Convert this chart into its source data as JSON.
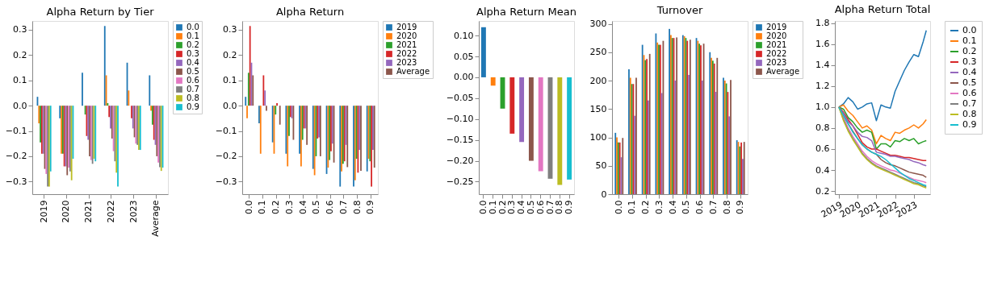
{
  "chart_data": [
    {
      "type": "bar",
      "title": "Alpha Return by Tier",
      "categories": [
        "2019",
        "2020",
        "2021",
        "2022",
        "2023",
        "Average"
      ],
      "legend": "right",
      "ylim": [
        -0.35,
        0.335
      ],
      "yticks": [
        {
          "value": -0.3,
          "label": "−0.3"
        },
        {
          "value": -0.2,
          "label": "−0.2"
        },
        {
          "value": -0.1,
          "label": "−0.1"
        },
        {
          "value": 0,
          "label": "0.0"
        },
        0.1,
        0.2,
        0.3
      ],
      "series": [
        {
          "name": "0.0",
          "color": "#1f77b4",
          "values": [
            0.035,
            -0.05,
            0.13,
            0.315,
            0.17,
            0.12
          ]
        },
        {
          "name": "0.1",
          "color": "#ff7f0e",
          "values": [
            -0.07,
            -0.19,
            0.0,
            0.12,
            0.06,
            -0.02
          ]
        },
        {
          "name": "0.2",
          "color": "#2ca02c",
          "values": [
            -0.145,
            -0.19,
            -0.035,
            0.01,
            0.0,
            -0.075
          ]
        },
        {
          "name": "0.3",
          "color": "#d62728",
          "values": [
            -0.19,
            -0.24,
            -0.12,
            -0.045,
            -0.05,
            -0.135
          ]
        },
        {
          "name": "0.4",
          "color": "#9467bd",
          "values": [
            -0.19,
            -0.24,
            -0.135,
            -0.09,
            -0.09,
            -0.155
          ]
        },
        {
          "name": "0.5",
          "color": "#8c564b",
          "values": [
            -0.25,
            -0.275,
            -0.2,
            -0.13,
            -0.125,
            -0.2
          ]
        },
        {
          "name": "0.6",
          "color": "#e377c2",
          "values": [
            -0.27,
            -0.245,
            -0.215,
            -0.18,
            -0.15,
            -0.225
          ]
        },
        {
          "name": "0.7",
          "color": "#7f7f7f",
          "values": [
            -0.32,
            -0.26,
            -0.23,
            -0.22,
            -0.155,
            -0.243
          ]
        },
        {
          "name": "0.8",
          "color": "#bcbd22",
          "values": [
            -0.32,
            -0.295,
            -0.21,
            -0.265,
            -0.175,
            -0.258
          ]
        },
        {
          "name": "0.9",
          "color": "#17becf",
          "values": [
            -0.26,
            -0.21,
            -0.22,
            -0.32,
            -0.175,
            -0.245
          ]
        }
      ]
    },
    {
      "type": "bar",
      "title": "Alpha Return",
      "categories": [
        "0.0",
        "0.1",
        "0.2",
        "0.3",
        "0.4",
        "0.5",
        "0.6",
        "0.7",
        "0.8",
        "0.9"
      ],
      "legend": "right",
      "ylim": [
        -0.35,
        0.335
      ],
      "yticks": [
        {
          "value": -0.3,
          "label": "−0.3"
        },
        {
          "value": -0.2,
          "label": "−0.2"
        },
        {
          "value": -0.1,
          "label": "−0.1"
        },
        {
          "value": 0,
          "label": "0.0"
        },
        0.1,
        0.2,
        0.3
      ],
      "series": [
        {
          "name": "2019",
          "color": "#1f77b4",
          "values": [
            0.035,
            -0.07,
            -0.145,
            -0.19,
            -0.19,
            -0.25,
            -0.27,
            -0.32,
            -0.32,
            -0.26
          ]
        },
        {
          "name": "2020",
          "color": "#ff7f0e",
          "values": [
            -0.05,
            -0.19,
            -0.19,
            -0.24,
            -0.24,
            -0.275,
            -0.245,
            -0.26,
            -0.295,
            -0.21
          ]
        },
        {
          "name": "2021",
          "color": "#2ca02c",
          "values": [
            0.13,
            0.0,
            -0.035,
            -0.12,
            -0.135,
            -0.2,
            -0.215,
            -0.23,
            -0.21,
            -0.22
          ]
        },
        {
          "name": "2022",
          "color": "#d62728",
          "values": [
            0.315,
            0.12,
            0.01,
            -0.045,
            -0.09,
            -0.13,
            -0.18,
            -0.22,
            -0.265,
            -0.32
          ]
        },
        {
          "name": "2023",
          "color": "#9467bd",
          "values": [
            0.17,
            0.06,
            0.0,
            -0.05,
            -0.09,
            -0.125,
            -0.15,
            -0.155,
            -0.175,
            -0.175
          ]
        },
        {
          "name": "Average",
          "color": "#8c564b",
          "values": [
            0.12,
            -0.02,
            -0.075,
            -0.135,
            -0.155,
            -0.2,
            -0.225,
            -0.243,
            -0.258,
            -0.245
          ]
        }
      ]
    },
    {
      "type": "bar",
      "title": "Alpha Return Mean",
      "categories": [
        "0.0",
        "0.1",
        "0.2",
        "0.3",
        "0.4",
        "0.5",
        "0.6",
        "0.7",
        "0.8",
        "0.9"
      ],
      "ylim": [
        -0.28,
        0.135
      ],
      "yticks": [
        {
          "value": -0.25,
          "label": "−0.25"
        },
        {
          "value": -0.2,
          "label": "−0.20"
        },
        {
          "value": -0.15,
          "label": "−0.15"
        },
        {
          "value": -0.1,
          "label": "−0.10"
        },
        {
          "value": -0.05,
          "label": "−0.05"
        },
        {
          "value": 0,
          "label": "0.00"
        },
        0.05,
        {
          "value": 0.1,
          "label": "0.10"
        }
      ],
      "values": [
        0.12,
        -0.02,
        -0.075,
        -0.135,
        -0.155,
        -0.2,
        -0.225,
        -0.243,
        -0.258,
        -0.245
      ],
      "colors": [
        "#1f77b4",
        "#ff7f0e",
        "#2ca02c",
        "#d62728",
        "#9467bd",
        "#8c564b",
        "#e377c2",
        "#7f7f7f",
        "#bcbd22",
        "#17becf"
      ]
    },
    {
      "type": "bar",
      "title": "Turnover",
      "categories": [
        "0.0",
        "0.1",
        "0.2",
        "0.3",
        "0.4",
        "0.5",
        "0.6",
        "0.7",
        "0.8",
        "0.9"
      ],
      "legend": "right",
      "ylim": [
        0,
        305
      ],
      "yticks": [
        0,
        50,
        100,
        150,
        200,
        250,
        300
      ],
      "series": [
        {
          "name": "2019",
          "color": "#1f77b4",
          "values": [
            108,
            220,
            263,
            283,
            291,
            280,
            275,
            250,
            205,
            95
          ]
        },
        {
          "name": "2020",
          "color": "#ff7f0e",
          "values": [
            100,
            205,
            245,
            267,
            280,
            278,
            270,
            240,
            200,
            92
          ]
        },
        {
          "name": "2021",
          "color": "#2ca02c",
          "values": [
            91,
            194,
            236,
            263,
            275,
            275,
            265,
            235,
            195,
            84
          ]
        },
        {
          "name": "2022",
          "color": "#d62728",
          "values": [
            91,
            194,
            238,
            263,
            275,
            270,
            262,
            230,
            180,
            91
          ]
        },
        {
          "name": "2023",
          "color": "#9467bd",
          "values": [
            65,
            138,
            165,
            178,
            200,
            210,
            200,
            180,
            137,
            62
          ]
        },
        {
          "name": "Average",
          "color": "#8c564b",
          "values": [
            99,
            205,
            247,
            270,
            276,
            272,
            265,
            240,
            201,
            92
          ]
        }
      ]
    },
    {
      "type": "line",
      "title": "Alpha Return Total",
      "legend": "right",
      "x": [
        "2019-01-01",
        "2019-04-01",
        "2019-07-01",
        "2019-10-01",
        "2020-01-01",
        "2020-04-01",
        "2020-07-01",
        "2020-10-01",
        "2021-01-01",
        "2021-04-01",
        "2021-07-01",
        "2021-10-01",
        "2022-01-01",
        "2022-04-01",
        "2022-07-01",
        "2022-10-01",
        "2023-01-01",
        "2023-04-01",
        "2023-07-01",
        "2023-09-01"
      ],
      "xlim": [
        "2018-10-15",
        "2023-11-15"
      ],
      "xticks": [
        "2019",
        "2020",
        "2021",
        "2022",
        "2023"
      ],
      "ylim": [
        0.17,
        1.82
      ],
      "yticks": [
        0.2,
        0.4,
        0.6,
        0.8,
        {
          "value": 1.0,
          "label": "1.0"
        },
        1.2,
        1.4,
        1.6,
        1.8
      ],
      "series": [
        {
          "name": "0.0",
          "color": "#1f77b4",
          "values": [
            1.0,
            1.03,
            1.09,
            1.05,
            0.98,
            1.0,
            1.03,
            1.04,
            0.87,
            1.02,
            1.0,
            0.99,
            1.15,
            1.25,
            1.35,
            1.43,
            1.5,
            1.48,
            1.62,
            1.73
          ]
        },
        {
          "name": "0.1",
          "color": "#ff7f0e",
          "values": [
            1.0,
            1.02,
            0.96,
            0.92,
            0.86,
            0.8,
            0.82,
            0.78,
            0.65,
            0.73,
            0.7,
            0.68,
            0.76,
            0.75,
            0.78,
            0.8,
            0.83,
            0.8,
            0.84,
            0.88
          ]
        },
        {
          "name": "0.2",
          "color": "#2ca02c",
          "values": [
            1.0,
            0.98,
            0.9,
            0.86,
            0.8,
            0.76,
            0.78,
            0.76,
            0.6,
            0.65,
            0.65,
            0.62,
            0.68,
            0.67,
            0.7,
            0.68,
            0.7,
            0.65,
            0.67,
            0.68
          ]
        },
        {
          "name": "0.3",
          "color": "#d62728",
          "values": [
            1.0,
            0.95,
            0.88,
            0.82,
            0.74,
            0.66,
            0.62,
            0.6,
            0.6,
            0.58,
            0.56,
            0.54,
            0.54,
            0.53,
            0.52,
            0.52,
            0.51,
            0.5,
            0.49,
            0.49
          ]
        },
        {
          "name": "0.4",
          "color": "#9467bd",
          "values": [
            1.0,
            0.94,
            0.86,
            0.82,
            0.76,
            0.72,
            0.71,
            0.68,
            0.57,
            0.56,
            0.55,
            0.53,
            0.53,
            0.52,
            0.51,
            0.5,
            0.48,
            0.47,
            0.45,
            0.44
          ]
        },
        {
          "name": "0.5",
          "color": "#8c564b",
          "values": [
            1.0,
            0.92,
            0.84,
            0.77,
            0.7,
            0.64,
            0.6,
            0.57,
            0.55,
            0.5,
            0.47,
            0.45,
            0.44,
            0.42,
            0.4,
            0.38,
            0.37,
            0.36,
            0.35,
            0.33
          ]
        },
        {
          "name": "0.6",
          "color": "#e377c2",
          "values": [
            1.0,
            0.9,
            0.8,
            0.72,
            0.65,
            0.58,
            0.53,
            0.49,
            0.46,
            0.44,
            0.42,
            0.4,
            0.39,
            0.37,
            0.35,
            0.33,
            0.31,
            0.3,
            0.29,
            0.28
          ]
        },
        {
          "name": "0.7",
          "color": "#7f7f7f",
          "values": [
            1.0,
            0.88,
            0.78,
            0.7,
            0.63,
            0.56,
            0.51,
            0.47,
            0.44,
            0.42,
            0.4,
            0.38,
            0.36,
            0.34,
            0.32,
            0.3,
            0.28,
            0.27,
            0.25,
            0.24
          ]
        },
        {
          "name": "0.8",
          "color": "#bcbd22",
          "values": [
            1.0,
            0.87,
            0.77,
            0.69,
            0.62,
            0.55,
            0.5,
            0.46,
            0.43,
            0.41,
            0.39,
            0.37,
            0.35,
            0.33,
            0.31,
            0.29,
            0.27,
            0.26,
            0.24,
            0.23
          ]
        },
        {
          "name": "0.9",
          "color": "#17becf",
          "values": [
            1.0,
            0.92,
            0.84,
            0.76,
            0.7,
            0.64,
            0.6,
            0.57,
            0.55,
            0.53,
            0.5,
            0.46,
            0.42,
            0.38,
            0.35,
            0.32,
            0.3,
            0.28,
            0.26,
            0.25
          ]
        }
      ]
    }
  ]
}
